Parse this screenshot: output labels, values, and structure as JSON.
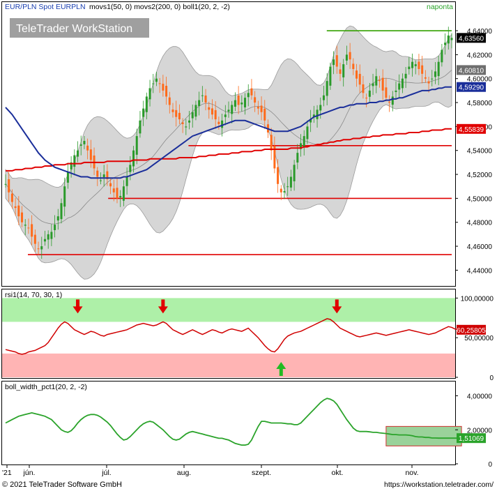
{
  "header": {
    "title": "EUR/PLN Spot EURPLN",
    "indicators": "movs1(50, 0) movs2(200, 0) boll1(20, 2, -2)",
    "period": "naponta",
    "watermark": "TeleTrader WorkStation"
  },
  "footer": {
    "copyright": "© 2021 TeleTrader Software GmbH",
    "url": "https://workstation.teletrader.com/"
  },
  "colors": {
    "up_candle": "#2a9a2a",
    "down_candle": "#ff6a1a",
    "ma50": "#1a2e9a",
    "ma200": "#e00000",
    "boll_fill": "#d6d6d6",
    "resistance": "#33a000",
    "support": "#e00000",
    "rsi_line": "#d00000",
    "rsi_overbought_zone": "#aef0a8",
    "rsi_oversold_zone": "#ffb4b4",
    "bw_line": "#2aa32a"
  },
  "x_axis": {
    "labels": [
      "'21",
      "jún.",
      "júl.",
      "aug.",
      "szept.",
      "okt.",
      "nov."
    ]
  },
  "chart_data": [
    {
      "type": "candlestick",
      "name": "price",
      "yticks": [
        "4,44000",
        "4,46000",
        "4,48000",
        "4,50000",
        "4,52000",
        "4,54000",
        "4,56000",
        "4,58000",
        "4,60000",
        "4,62000",
        "4,64000"
      ],
      "ylim": [
        4.428,
        4.654
      ],
      "last_labels": {
        "price": "4,63560",
        "boll_mid": "4,60810",
        "ma50": "4,59290",
        "ma200": "4,55839"
      },
      "horizontal_lines": [
        {
          "type": "resistance",
          "value": 4.64,
          "from": 0.72,
          "to": 1.0
        },
        {
          "type": "support",
          "value": 4.544,
          "from": 0.41,
          "to": 1.0
        },
        {
          "type": "support",
          "value": 4.5,
          "from": 0.23,
          "to": 1.0
        },
        {
          "type": "support",
          "value": 4.453,
          "from": 0.05,
          "to": 1.0
        }
      ],
      "close": [
        4.512,
        4.505,
        4.497,
        4.492,
        4.485,
        4.48,
        4.478,
        4.475,
        4.468,
        4.462,
        4.458,
        4.46,
        4.466,
        4.47,
        4.472,
        4.478,
        4.485,
        4.496,
        4.51,
        4.522,
        4.53,
        4.536,
        4.54,
        4.545,
        4.548,
        4.54,
        4.532,
        4.525,
        4.518,
        4.515,
        4.52,
        4.516,
        4.51,
        4.505,
        4.5,
        4.502,
        4.51,
        4.518,
        4.528,
        4.54,
        4.552,
        4.565,
        4.575,
        4.585,
        4.592,
        4.596,
        4.6,
        4.596,
        4.59,
        4.585,
        4.578,
        4.572,
        4.568,
        4.566,
        4.562,
        4.56,
        4.565,
        4.572,
        4.578,
        4.582,
        4.586,
        4.58,
        4.574,
        4.57,
        4.566,
        4.562,
        4.565,
        4.57,
        4.574,
        4.578,
        4.582,
        4.578,
        4.58,
        4.584,
        4.588,
        4.586,
        4.58,
        4.575,
        4.572,
        4.565,
        4.555,
        4.54,
        4.525,
        4.512,
        4.505,
        4.506,
        4.51,
        4.518,
        4.528,
        4.538,
        4.546,
        4.552,
        4.56,
        4.566,
        4.57,
        4.574,
        4.578,
        4.586,
        4.598,
        4.61,
        4.616,
        4.61,
        4.604,
        4.612,
        4.62,
        4.616,
        4.608,
        4.6,
        4.595,
        4.588,
        4.584,
        4.59,
        4.596,
        4.602,
        4.598,
        4.59,
        4.584,
        4.58,
        4.585,
        4.59,
        4.596,
        4.6,
        4.604,
        4.61,
        4.614,
        4.612,
        4.608,
        4.604,
        4.6,
        4.596,
        4.6,
        4.606,
        4.614,
        4.624,
        4.63,
        4.636,
        4.634
      ],
      "ma50": [
        4.576,
        4.573,
        4.57,
        4.566,
        4.562,
        4.558,
        4.554,
        4.55,
        4.546,
        4.542,
        4.538,
        4.535,
        4.532,
        4.53,
        4.528,
        4.526,
        4.525,
        4.524,
        4.523,
        4.522,
        4.521,
        4.52,
        4.519,
        4.518,
        4.518,
        4.518,
        4.517,
        4.517,
        4.517,
        4.517,
        4.517,
        4.517,
        4.517,
        4.517,
        4.517,
        4.517,
        4.518,
        4.518,
        4.519,
        4.52,
        4.521,
        4.522,
        4.523,
        4.524,
        4.526,
        4.528,
        4.53,
        4.532,
        4.534,
        4.536,
        4.538,
        4.54,
        4.542,
        4.544,
        4.546,
        4.548,
        4.55,
        4.552,
        4.553,
        4.554,
        4.555,
        4.556,
        4.557,
        4.558,
        4.559,
        4.56,
        4.561,
        4.562,
        4.563,
        4.564,
        4.565,
        4.565,
        4.565,
        4.565,
        4.564,
        4.563,
        4.562,
        4.561,
        4.56,
        4.559,
        4.558,
        4.557,
        4.556,
        4.556,
        4.556,
        4.556,
        4.556,
        4.557,
        4.558,
        4.559,
        4.56,
        4.562,
        4.564,
        4.566,
        4.568,
        4.569,
        4.57,
        4.571,
        4.572,
        4.573,
        4.574,
        4.575,
        4.576,
        4.576,
        4.577,
        4.578,
        4.578,
        4.579,
        4.579,
        4.579,
        4.579,
        4.58,
        4.58,
        4.58,
        4.581,
        4.581,
        4.582,
        4.582,
        4.583,
        4.583,
        4.584,
        4.584,
        4.585,
        4.586,
        4.587,
        4.588,
        4.589,
        4.59,
        4.59,
        4.59,
        4.591,
        4.591,
        4.592,
        4.592,
        4.593,
        4.593,
        4.593
      ],
      "ma200": [
        4.523,
        4.523,
        4.523,
        4.524,
        4.524,
        4.524,
        4.525,
        4.525,
        4.525,
        4.526,
        4.526,
        4.526,
        4.527,
        4.527,
        4.527,
        4.528,
        4.528,
        4.528,
        4.528,
        4.529,
        4.529,
        4.529,
        4.529,
        4.529,
        4.53,
        4.53,
        4.53,
        4.53,
        4.53,
        4.53,
        4.53,
        4.531,
        4.531,
        4.531,
        4.531,
        4.531,
        4.531,
        4.531,
        4.531,
        4.532,
        4.532,
        4.532,
        4.532,
        4.532,
        4.533,
        4.533,
        4.533,
        4.533,
        4.533,
        4.533,
        4.533,
        4.533,
        4.533,
        4.534,
        4.534,
        4.534,
        4.534,
        4.534,
        4.534,
        4.535,
        4.535,
        4.535,
        4.536,
        4.536,
        4.536,
        4.537,
        4.537,
        4.537,
        4.537,
        4.538,
        4.538,
        4.538,
        4.539,
        4.539,
        4.539,
        4.539,
        4.54,
        4.54,
        4.54,
        4.541,
        4.541,
        4.541,
        4.541,
        4.541,
        4.541,
        4.541,
        4.541,
        4.542,
        4.542,
        4.542,
        4.542,
        4.543,
        4.543,
        4.544,
        4.544,
        4.545,
        4.545,
        4.546,
        4.546,
        4.547,
        4.547,
        4.548,
        4.548,
        4.549,
        4.549,
        4.549,
        4.55,
        4.55,
        4.55,
        4.551,
        4.551,
        4.551,
        4.552,
        4.552,
        4.552,
        4.553,
        4.553,
        4.553,
        4.553,
        4.554,
        4.554,
        4.554,
        4.554,
        4.555,
        4.555,
        4.555,
        4.555,
        4.556,
        4.556,
        4.556,
        4.557,
        4.557,
        4.557,
        4.557,
        4.558,
        4.558,
        4.558
      ]
    },
    {
      "type": "line",
      "name": "rsi1(14, 70, 30, 1)",
      "yticks": [
        "0",
        "50,00000",
        "100,00000"
      ],
      "ylim": [
        0,
        110
      ],
      "zones": {
        "overbought": [
          70,
          110
        ],
        "oversold": [
          0,
          30
        ]
      },
      "last_label": "60,25805",
      "arrows": [
        {
          "direction": "down",
          "index": 22
        },
        {
          "direction": "down",
          "index": 48
        },
        {
          "direction": "down",
          "index": 101
        },
        {
          "direction": "up",
          "index": 84
        }
      ],
      "values": [
        35,
        34,
        33,
        32,
        30,
        29,
        30,
        32,
        33,
        34,
        36,
        38,
        40,
        44,
        50,
        56,
        62,
        67,
        70,
        68,
        64,
        60,
        58,
        56,
        54,
        56,
        58,
        57,
        55,
        53,
        52,
        54,
        55,
        56,
        57,
        58,
        59,
        60,
        62,
        64,
        66,
        67,
        68,
        67,
        66,
        65,
        66,
        68,
        70,
        68,
        64,
        60,
        58,
        56,
        54,
        56,
        58,
        60,
        58,
        56,
        54,
        56,
        58,
        60,
        59,
        57,
        56,
        58,
        60,
        61,
        60,
        59,
        58,
        60,
        62,
        58,
        54,
        50,
        45,
        40,
        36,
        33,
        32,
        36,
        42,
        48,
        52,
        54,
        56,
        57,
        58,
        60,
        62,
        64,
        66,
        68,
        70,
        72,
        74,
        73,
        70,
        66,
        62,
        60,
        58,
        56,
        54,
        52,
        51,
        52,
        53,
        54,
        55,
        56,
        55,
        54,
        53,
        54,
        55,
        56,
        57,
        58,
        59,
        60,
        59,
        58,
        57,
        56,
        55,
        54,
        55,
        56,
        58,
        60,
        62,
        64,
        63,
        61,
        60
      ]
    },
    {
      "type": "line",
      "name": "boll_width_pct1(20, 2, -2)",
      "yticks": [
        "0",
        "2,00000",
        "4,00000"
      ],
      "ylim": [
        0,
        4.8
      ],
      "last_label": "1,51069",
      "highlight_box": {
        "from_index": 116,
        "to_index": 139,
        "y_range": [
          1.05,
          2.2
        ]
      },
      "values": [
        2.4,
        2.5,
        2.6,
        2.7,
        2.8,
        2.85,
        2.9,
        2.95,
        3.0,
        2.95,
        2.9,
        2.85,
        2.8,
        2.7,
        2.6,
        2.4,
        2.2,
        2.0,
        1.9,
        1.85,
        1.95,
        2.15,
        2.4,
        2.6,
        2.75,
        2.85,
        2.9,
        2.9,
        2.85,
        2.75,
        2.6,
        2.45,
        2.25,
        2.0,
        1.75,
        1.55,
        1.4,
        1.45,
        1.6,
        1.8,
        2.0,
        2.2,
        2.35,
        2.45,
        2.5,
        2.45,
        2.3,
        2.15,
        2.0,
        1.8,
        1.6,
        1.45,
        1.4,
        1.45,
        1.6,
        1.75,
        1.85,
        1.9,
        1.85,
        1.8,
        1.75,
        1.7,
        1.65,
        1.6,
        1.55,
        1.5,
        1.5,
        1.45,
        1.4,
        1.3,
        1.2,
        1.15,
        1.1,
        1.1,
        1.15,
        1.4,
        1.8,
        2.2,
        2.5,
        2.5,
        2.45,
        2.4,
        2.4,
        2.4,
        2.4,
        2.38,
        2.35,
        2.35,
        2.3,
        2.3,
        2.4,
        2.6,
        2.8,
        3.0,
        3.2,
        3.4,
        3.6,
        3.75,
        3.85,
        3.8,
        3.7,
        3.5,
        3.2,
        2.9,
        2.6,
        2.35,
        2.1,
        1.95,
        1.9,
        1.9,
        1.9,
        1.88,
        1.85,
        1.85,
        1.82,
        1.8,
        1.78,
        1.75,
        1.72,
        1.72,
        1.7,
        1.7,
        1.7,
        1.68,
        1.65,
        1.6,
        1.58,
        1.58,
        1.55,
        1.55,
        1.52,
        1.52,
        1.51,
        1.51,
        1.51,
        1.51,
        1.51,
        1.51,
        1.51
      ]
    }
  ]
}
